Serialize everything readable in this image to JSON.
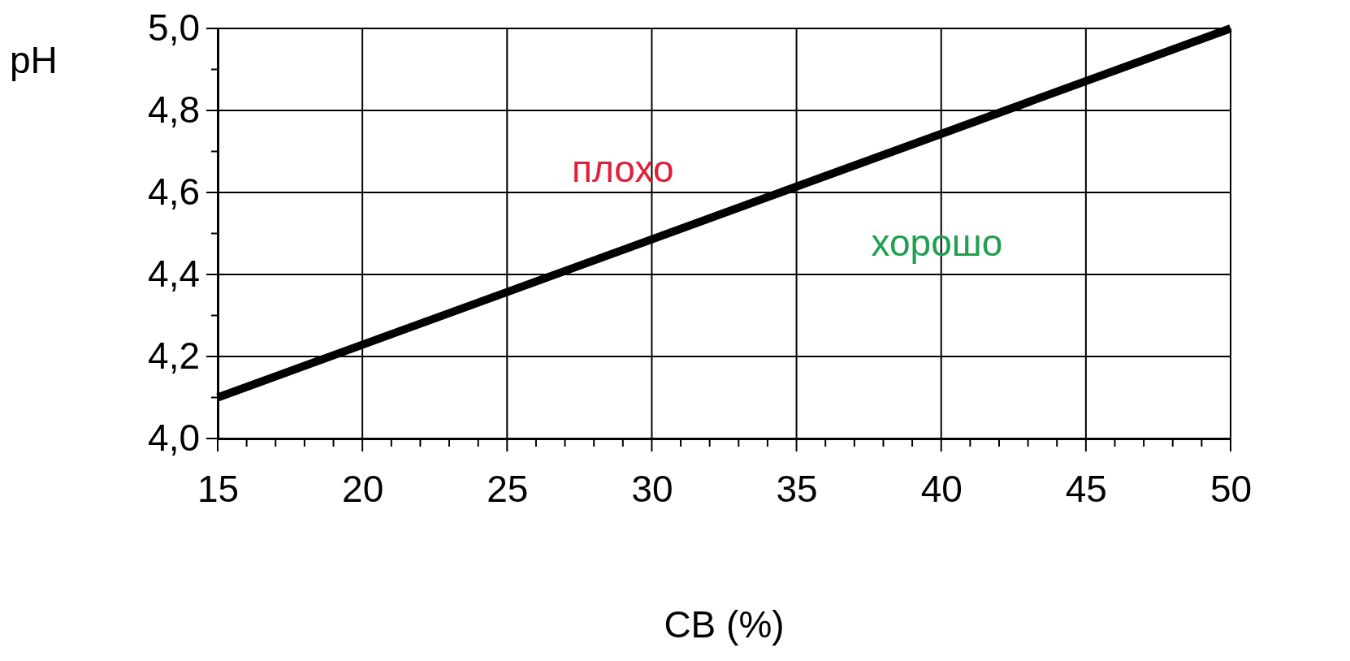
{
  "chart_data": {
    "type": "line",
    "xlabel": "СВ (%)",
    "ylabel": "pH",
    "x": [
      15,
      50
    ],
    "series": [
      {
        "color": "#000000",
        "values": [
          4.1,
          5.0
        ]
      }
    ],
    "xlim": [
      15,
      50
    ],
    "ylim": [
      4.0,
      5.0
    ],
    "xticks": [
      15,
      {
        "value": 16,
        "label": null
      },
      {
        "value": 17,
        "label": null
      },
      {
        "value": 18,
        "label": null
      },
      {
        "value": 19,
        "label": null
      },
      20,
      {
        "value": 21,
        "label": null
      },
      {
        "value": 22,
        "label": null
      },
      {
        "value": 23,
        "label": null
      },
      {
        "value": 24,
        "label": null
      },
      25,
      {
        "value": 26,
        "label": null
      },
      {
        "value": 27,
        "label": null
      },
      {
        "value": 28,
        "label": null
      },
      {
        "value": 29,
        "label": null
      },
      30,
      {
        "value": 31,
        "label": null
      },
      {
        "value": 32,
        "label": null
      },
      {
        "value": 33,
        "label": null
      },
      {
        "value": 34,
        "label": null
      },
      35,
      {
        "value": 36,
        "label": null
      },
      {
        "value": 37,
        "label": null
      },
      {
        "value": 38,
        "label": null
      },
      {
        "value": 39,
        "label": null
      },
      40,
      {
        "value": 41,
        "label": null
      },
      {
        "value": 42,
        "label": null
      },
      {
        "value": 43,
        "label": null
      },
      {
        "value": 44,
        "label": null
      },
      45,
      {
        "value": 46,
        "label": null
      },
      {
        "value": 47,
        "label": null
      },
      {
        "value": 48,
        "label": null
      },
      {
        "value": 49,
        "label": null
      },
      50
    ],
    "yticks": [
      {
        "value": 4.0,
        "label": "4,0"
      },
      {
        "value": 4.1,
        "label": null
      },
      {
        "value": 4.2,
        "label": "4,2"
      },
      {
        "value": 4.3,
        "label": null
      },
      {
        "value": 4.4,
        "label": "4,4"
      },
      {
        "value": 4.5,
        "label": null
      },
      {
        "value": 4.6,
        "label": "4,6"
      },
      {
        "value": 4.7,
        "label": null
      },
      {
        "value": 4.8,
        "label": "4,8"
      },
      {
        "value": 4.9,
        "label": null
      },
      {
        "value": 5.0,
        "label": "5,0"
      }
    ],
    "grid": true,
    "marker": "none",
    "line_style": "solid",
    "annotations": [
      "плохо",
      "хорошо"
    ]
  }
}
